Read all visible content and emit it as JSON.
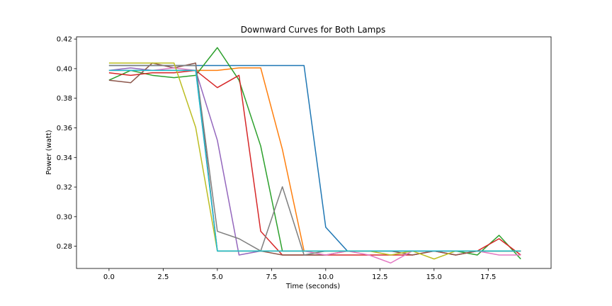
{
  "chart_data": {
    "type": "line",
    "title": "Downward Curves for Both Lamps",
    "xlabel": "Time (seconds)",
    "ylabel": "Power (watt)",
    "xlim": [
      -1.5,
      20.4
    ],
    "ylim": [
      0.265,
      0.4215
    ],
    "xticks": [
      0.0,
      2.5,
      5.0,
      7.5,
      10.0,
      12.5,
      15.0,
      17.5
    ],
    "xtick_labels": [
      "0.0",
      "2.5",
      "5.0",
      "7.5",
      "10.0",
      "12.5",
      "15.0",
      "17.5"
    ],
    "yticks": [
      0.28,
      0.3,
      0.32,
      0.34,
      0.36,
      0.38,
      0.4,
      0.42
    ],
    "ytick_labels": [
      "0.28",
      "0.30",
      "0.32",
      "0.34",
      "0.36",
      "0.38",
      "0.40",
      "0.42"
    ],
    "grid": false,
    "x": [
      0,
      1,
      2,
      3,
      4,
      5,
      6,
      7,
      8,
      9,
      10,
      11,
      12,
      13,
      14,
      15,
      16,
      17,
      18,
      19
    ],
    "series": [
      {
        "color": "#1f77b4",
        "values": [
          0.4021,
          0.4021,
          0.4021,
          0.4021,
          0.4021,
          0.4021,
          0.4021,
          0.4021,
          0.4021,
          0.4021,
          0.2929,
          0.2768,
          0.2768,
          0.2768,
          0.2768,
          0.2768,
          0.2768,
          0.2768,
          0.2768,
          0.2768
        ]
      },
      {
        "color": "#ff7f0e",
        "values": [
          0.3988,
          0.3988,
          0.3988,
          0.3988,
          0.3988,
          0.3988,
          0.4005,
          0.4005,
          0.3455,
          0.2768,
          0.2768,
          0.2768,
          0.2768,
          0.2768,
          0.2768,
          0.2768,
          0.2768,
          0.2768,
          0.2768,
          0.2768
        ]
      },
      {
        "color": "#2ca02c",
        "values": [
          0.3922,
          0.3988,
          0.3955,
          0.3939,
          0.3955,
          0.4142,
          0.3922,
          0.3477,
          0.2768,
          0.2768,
          0.2768,
          0.2768,
          0.2768,
          0.2768,
          0.2768,
          0.2768,
          0.2768,
          0.2741,
          0.2874,
          0.2714
        ]
      },
      {
        "color": "#d62728",
        "values": [
          0.3972,
          0.3955,
          0.3972,
          0.3972,
          0.3988,
          0.3872,
          0.3955,
          0.2901,
          0.2741,
          0.2741,
          0.2741,
          0.2741,
          0.2741,
          0.2741,
          0.2741,
          0.2768,
          0.2741,
          0.2768,
          0.2851,
          0.2741
        ]
      },
      {
        "color": "#9467bd",
        "values": [
          0.3988,
          0.4005,
          0.3988,
          0.3988,
          0.3988,
          0.3516,
          0.2741,
          0.2768,
          0.2768,
          0.2768,
          0.2768,
          0.2768,
          0.2768,
          0.2768,
          0.2768,
          0.2768,
          0.2768,
          0.2768,
          0.2768,
          0.2768
        ]
      },
      {
        "color": "#8c564b",
        "values": [
          0.3922,
          0.3905,
          0.4038,
          0.4005,
          0.4038,
          0.2768,
          0.2768,
          0.2768,
          0.2741,
          0.2741,
          0.2741,
          0.2768,
          0.2768,
          0.2768,
          0.2741,
          0.2768,
          0.2741,
          0.2768,
          0.2768,
          0.2768
        ]
      },
      {
        "color": "#e377c2",
        "values": [
          0.3988,
          0.3988,
          0.3988,
          0.4005,
          0.3988,
          0.2768,
          0.2768,
          0.2768,
          0.2768,
          0.2768,
          0.2741,
          0.2768,
          0.2741,
          0.2687,
          0.2768,
          0.2768,
          0.2768,
          0.2768,
          0.2741,
          0.2741
        ]
      },
      {
        "color": "#7f7f7f",
        "values": [
          0.4021,
          0.4021,
          0.4021,
          0.4021,
          0.4021,
          0.2901,
          0.2851,
          0.2768,
          0.3202,
          0.2741,
          0.2768,
          0.2768,
          0.2768,
          0.2768,
          0.2768,
          0.2768,
          0.2768,
          0.2768,
          0.2768,
          0.2768
        ]
      },
      {
        "color": "#bcbd22",
        "values": [
          0.4038,
          0.4038,
          0.4038,
          0.4038,
          0.3603,
          0.2768,
          0.2768,
          0.2768,
          0.2768,
          0.2768,
          0.2768,
          0.2768,
          0.2768,
          0.2741,
          0.2768,
          0.2714,
          0.2768,
          0.2768,
          0.2768,
          0.2768
        ]
      },
      {
        "color": "#17becf",
        "values": [
          0.3988,
          0.3988,
          0.3988,
          0.3988,
          0.3988,
          0.2768,
          0.2768,
          0.2768,
          0.2768,
          0.2768,
          0.2768,
          0.2768,
          0.2768,
          0.2768,
          0.2768,
          0.2768,
          0.2768,
          0.2768,
          0.2768,
          0.2768
        ]
      }
    ]
  }
}
